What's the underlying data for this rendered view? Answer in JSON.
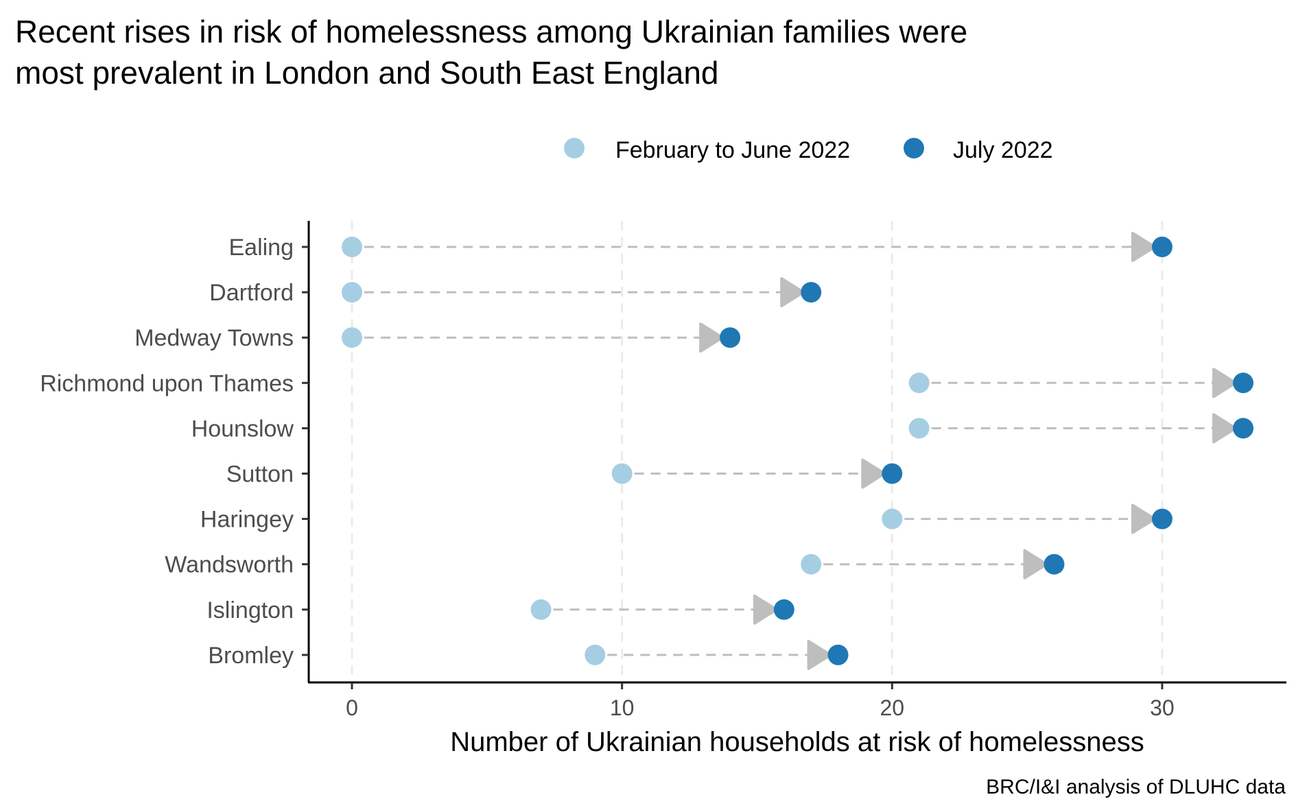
{
  "chart_data": {
    "type": "dumbbell",
    "title": "Recent rises in risk of homelessness among Ukrainian families were most prevalent in London and South East England",
    "title_lines": [
      "Recent rises in risk of homelessness among Ukrainian families were",
      "most prevalent in London and South East England"
    ],
    "xlabel": "Number of Ukrainian households at risk of homelessness",
    "ylabel": "",
    "caption": "BRC/I&I analysis of DLUHC data",
    "xlim": [
      -1.6,
      34.6
    ],
    "x_ticks": [
      0,
      10,
      20,
      30
    ],
    "grid": "vertical-dashed",
    "legend_position": "top",
    "categories": [
      "Ealing",
      "Dartford",
      "Medway Towns",
      "Richmond upon Thames",
      "Hounslow",
      "Sutton",
      "Haringey",
      "Wandsworth",
      "Islington",
      "Bromley"
    ],
    "series": [
      {
        "name": "February to June 2022",
        "color": "#a6cee3",
        "values": [
          0,
          0,
          0,
          21,
          21,
          10,
          20,
          17,
          7,
          9
        ]
      },
      {
        "name": "July 2022",
        "color": "#1f78b4",
        "values": [
          30,
          17,
          14,
          33,
          33,
          20,
          30,
          26,
          16,
          18
        ]
      }
    ],
    "connector_color": "#bebebe",
    "grid_color": "#ebebeb"
  }
}
